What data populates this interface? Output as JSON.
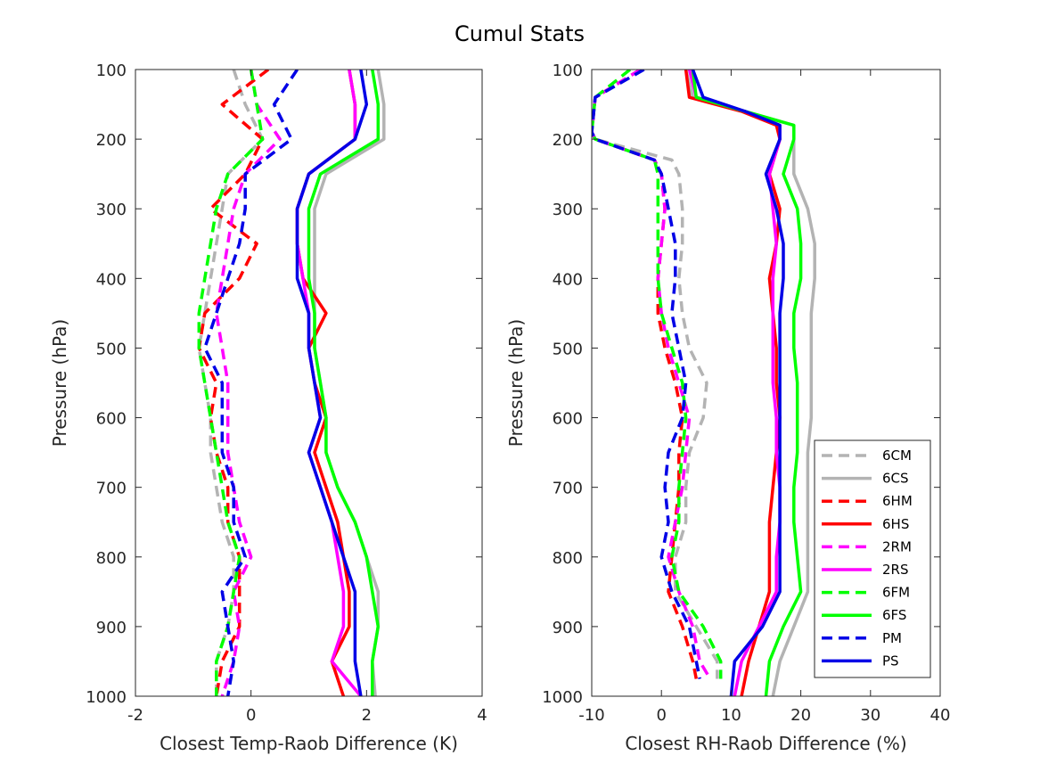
{
  "figure": {
    "title": "Cumul Stats"
  },
  "colors": {
    "6C": "#b3b3b3",
    "6H": "#ff0000",
    "2R": "#ff00ff",
    "6F": "#00ff00",
    "P": "#0000e6"
  },
  "legend": [
    {
      "label": "6CM",
      "group": "6C",
      "dash": true
    },
    {
      "label": "6CS",
      "group": "6C",
      "dash": false
    },
    {
      "label": "6HM",
      "group": "6H",
      "dash": true
    },
    {
      "label": "6HS",
      "group": "6H",
      "dash": false
    },
    {
      "label": "2RM",
      "group": "2R",
      "dash": true
    },
    {
      "label": "2RS",
      "group": "2R",
      "dash": false
    },
    {
      "label": "6FM",
      "group": "6F",
      "dash": true
    },
    {
      "label": "6FS",
      "group": "6F",
      "dash": false
    },
    {
      "label": "PM",
      "group": "P",
      "dash": true
    },
    {
      "label": "PS",
      "group": "P",
      "dash": false
    }
  ],
  "chart_data": [
    {
      "type": "line",
      "xlabel": "Closest Temp-Raob Difference (K)",
      "ylabel": "Pressure (hPa)",
      "xlim": [
        -2,
        4
      ],
      "ylim": [
        100,
        1000
      ],
      "y_reversed": true,
      "xticks": [
        "-2",
        "0",
        "2",
        "4"
      ],
      "yticks": [
        "100",
        "200",
        "300",
        "400",
        "500",
        "600",
        "700",
        "800",
        "900",
        "1000"
      ],
      "grid": false,
      "pressure": [
        100,
        150,
        200,
        250,
        300,
        350,
        400,
        450,
        500,
        550,
        600,
        650,
        700,
        750,
        800,
        850,
        900,
        950,
        1000
      ],
      "series": [
        {
          "name": "6CM",
          "values": [
            -0.3,
            -0.1,
            0.2,
            -0.4,
            -0.5,
            -0.6,
            -0.7,
            -0.8,
            -0.9,
            -0.8,
            -0.7,
            -0.7,
            -0.6,
            -0.5,
            -0.3,
            -0.3,
            -0.4,
            -0.6,
            -0.6
          ]
        },
        {
          "name": "6CS",
          "values": [
            2.2,
            2.3,
            2.3,
            1.3,
            1.1,
            1.1,
            1.1,
            1.1,
            1.1,
            1.2,
            1.3,
            1.3,
            1.5,
            1.8,
            2.0,
            2.2,
            2.2,
            2.1,
            2.15
          ]
        },
        {
          "name": "6HM",
          "values": [
            0.3,
            -0.5,
            0.2,
            -0.1,
            -0.7,
            0.1,
            -0.2,
            -0.8,
            -0.9,
            -0.6,
            -0.7,
            -0.6,
            -0.4,
            -0.4,
            -0.2,
            -0.2,
            -0.2,
            -0.5,
            -0.6
          ]
        },
        {
          "name": "6HS",
          "values": [
            1.7,
            1.8,
            1.8,
            1.0,
            0.8,
            0.8,
            0.9,
            1.3,
            1.0,
            1.1,
            1.3,
            1.1,
            1.3,
            1.5,
            1.6,
            1.7,
            1.7,
            1.4,
            1.6
          ]
        },
        {
          "name": "2RM",
          "values": [
            0.0,
            0.1,
            0.5,
            -0.1,
            -0.3,
            -0.4,
            -0.5,
            -0.6,
            -0.5,
            -0.4,
            -0.4,
            -0.4,
            -0.3,
            -0.2,
            0.0,
            -0.3,
            -0.2,
            -0.3,
            -0.5
          ]
        },
        {
          "name": "2RS",
          "values": [
            1.7,
            1.8,
            1.8,
            1.0,
            0.8,
            0.8,
            0.9,
            1.0,
            1.0,
            1.1,
            1.2,
            1.0,
            1.2,
            1.4,
            1.5,
            1.6,
            1.6,
            1.4,
            1.9
          ]
        },
        {
          "name": "6FM",
          "values": [
            0.0,
            0.1,
            0.2,
            -0.4,
            -0.6,
            -0.7,
            -0.8,
            -0.9,
            -0.9,
            -0.8,
            -0.7,
            -0.6,
            -0.5,
            -0.4,
            -0.2,
            -0.3,
            -0.4,
            -0.6,
            -0.6
          ]
        },
        {
          "name": "6FS",
          "values": [
            2.1,
            2.2,
            2.2,
            1.2,
            1.0,
            1.0,
            1.0,
            1.1,
            1.1,
            1.2,
            1.3,
            1.3,
            1.5,
            1.8,
            2.0,
            2.1,
            2.2,
            2.1,
            2.1
          ]
        },
        {
          "name": "PM",
          "values": [
            0.8,
            0.4,
            0.7,
            -0.1,
            -0.1,
            -0.2,
            -0.4,
            -0.6,
            -0.8,
            -0.5,
            -0.5,
            -0.5,
            -0.3,
            -0.3,
            -0.1,
            -0.5,
            -0.4,
            -0.3,
            -0.4
          ]
        },
        {
          "name": "PS",
          "values": [
            1.9,
            2.0,
            1.8,
            1.0,
            0.8,
            0.8,
            0.8,
            1.0,
            1.0,
            1.1,
            1.2,
            1.0,
            1.2,
            1.4,
            1.6,
            1.8,
            1.8,
            1.8,
            1.9
          ]
        }
      ]
    },
    {
      "type": "line",
      "xlabel": "Closest RH-Raob Difference (%)",
      "ylabel": "Pressure (hPa)",
      "xlim": [
        -10,
        40
      ],
      "ylim": [
        100,
        1000
      ],
      "y_reversed": true,
      "xticks": [
        "-10",
        "0",
        "10",
        "20",
        "30",
        "40"
      ],
      "yticks": [
        "100",
        "200",
        "300",
        "400",
        "500",
        "600",
        "700",
        "800",
        "900",
        "1000"
      ],
      "grid": false,
      "legend_position": "bottom-right",
      "pressure": [
        100,
        140,
        160,
        180,
        200,
        250,
        300,
        350,
        400,
        450,
        500,
        550,
        600,
        650,
        700,
        750,
        800,
        850,
        900,
        950,
        1000
      ],
      "series_dashed": {
        "pressure": [
          100,
          140,
          190,
          200,
          230,
          250,
          300,
          350,
          400,
          450,
          500,
          550,
          600,
          650,
          700,
          750,
          800,
          850,
          900,
          950,
          975
        ],
        "series": [
          {
            "name": "6CM",
            "values": [
              -2.5,
              -9.5,
              -10,
              -9.5,
              1.5,
              2.5,
              3.0,
              3.0,
              2.5,
              3.0,
              4.0,
              6.5,
              6.0,
              4.0,
              3.5,
              3.5,
              2.0,
              2.0,
              5.0,
              8.0,
              8.0
            ]
          },
          {
            "name": "6HM",
            "values": [
              -3.0,
              -9.5,
              -10,
              -9.5,
              -1.0,
              0.0,
              0.5,
              0.0,
              -0.5,
              -0.5,
              0.5,
              2.0,
              3.0,
              2.5,
              2.5,
              2.0,
              1.5,
              1.0,
              3.0,
              4.5,
              5.0
            ]
          },
          {
            "name": "2RM",
            "values": [
              -3.0,
              -9.5,
              -10,
              -9.5,
              -1.0,
              0.0,
              0.5,
              0.0,
              -0.5,
              0.0,
              1.0,
              2.5,
              4.0,
              3.5,
              3.0,
              2.0,
              1.0,
              2.5,
              4.5,
              5.5,
              7.0
            ]
          },
          {
            "name": "6FM",
            "values": [
              -4.5,
              -9.5,
              -10,
              -9.5,
              -1.0,
              -0.5,
              -0.5,
              -0.5,
              -0.5,
              0.0,
              1.5,
              3.0,
              3.5,
              3.0,
              2.5,
              2.5,
              1.5,
              2.5,
              6.0,
              8.5,
              8.5
            ]
          },
          {
            "name": "PM",
            "values": [
              -2.5,
              -9.5,
              -10,
              -9.5,
              -1.0,
              0.0,
              1.0,
              2.0,
              2.0,
              1.5,
              2.5,
              3.5,
              3.0,
              1.0,
              0.5,
              1.0,
              0.0,
              1.5,
              4.0,
              5.0,
              5.5
            ]
          }
        ]
      },
      "series": [
        {
          "name": "6CS",
          "values": [
            3.5,
            4.5,
            12.0,
            19.0,
            19.0,
            19.0,
            21.0,
            22.0,
            22.0,
            21.5,
            21.5,
            21.5,
            21.5,
            21.0,
            21.0,
            21.0,
            21.0,
            21.0,
            19.0,
            17.0,
            16.0
          ]
        },
        {
          "name": "6HS",
          "values": [
            3.5,
            4.0,
            11.5,
            16.5,
            17.0,
            15.5,
            17.0,
            16.5,
            15.5,
            16.0,
            16.5,
            16.5,
            17.0,
            16.5,
            16.0,
            15.5,
            15.5,
            15.5,
            14.0,
            12.5,
            11.5
          ]
        },
        {
          "name": "2RS",
          "values": [
            4.0,
            5.0,
            12.0,
            17.0,
            17.0,
            15.5,
            16.0,
            16.5,
            16.0,
            16.0,
            16.0,
            16.0,
            16.5,
            16.5,
            17.0,
            17.0,
            16.5,
            16.5,
            14.0,
            11.5,
            10.5
          ]
        },
        {
          "name": "6FS",
          "values": [
            4.5,
            5.0,
            12.0,
            19.0,
            19.0,
            17.5,
            19.5,
            20.0,
            20.0,
            19.0,
            19.0,
            19.5,
            19.5,
            19.5,
            19.0,
            19.0,
            19.5,
            20.0,
            17.5,
            15.5,
            15.0
          ]
        },
        {
          "name": "PS",
          "values": [
            4.5,
            6.0,
            12.0,
            17.0,
            17.0,
            15.0,
            16.5,
            17.5,
            17.5,
            17.0,
            17.0,
            17.0,
            17.0,
            17.0,
            17.0,
            17.0,
            17.0,
            17.0,
            14.5,
            10.5,
            10.0
          ]
        }
      ]
    }
  ]
}
